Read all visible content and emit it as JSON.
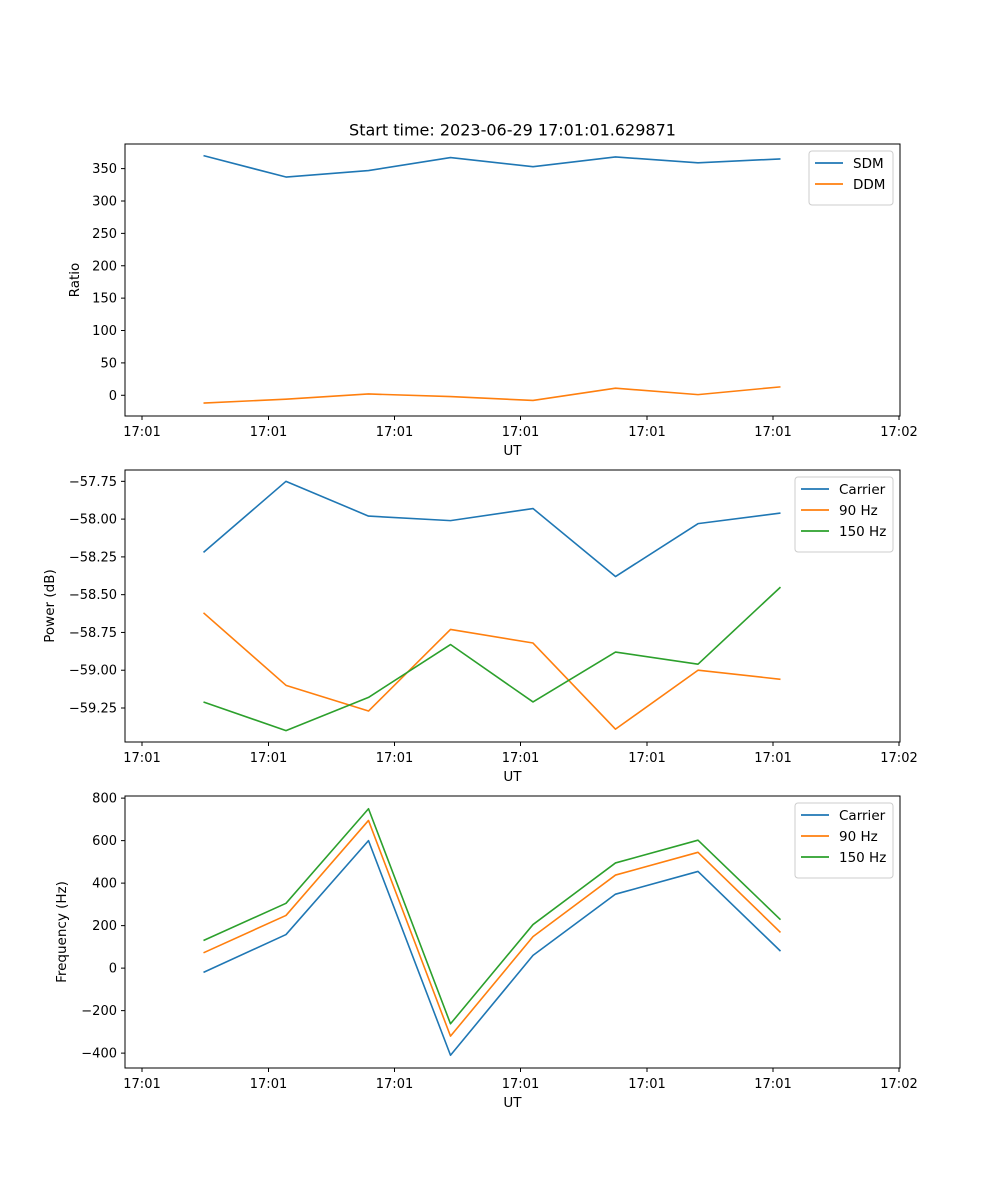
{
  "figure": {
    "title": "Start time: 2023-06-29 17:01:01.629871"
  },
  "colors": {
    "blue": "#1f77b4",
    "orange": "#ff7f0e",
    "green": "#2ca02c"
  },
  "chart_data": [
    {
      "type": "line",
      "title": "Start time: 2023-06-29 17:01:01.629871",
      "xlabel": "UT",
      "ylabel": "Ratio",
      "x_ticks": [
        "17:01",
        "17:01",
        "17:01",
        "17:01",
        "17:01",
        "17:01",
        "17:02"
      ],
      "y_ticks": [
        0,
        50,
        100,
        150,
        200,
        250,
        300,
        350
      ],
      "ylim": [
        -32,
        388
      ],
      "x_index": [
        0,
        1,
        2,
        3,
        4,
        5,
        6,
        7
      ],
      "legend_position": "top-right",
      "grid": false,
      "series": [
        {
          "name": "SDM",
          "color": "#1f77b4",
          "values": [
            370,
            337,
            347,
            367,
            353,
            368,
            359,
            365
          ]
        },
        {
          "name": "DDM",
          "color": "#ff7f0e",
          "values": [
            -12,
            -6,
            2,
            -2,
            -8,
            11,
            1,
            13
          ]
        }
      ]
    },
    {
      "type": "line",
      "xlabel": "UT",
      "ylabel": "Power (dB)",
      "x_ticks": [
        "17:01",
        "17:01",
        "17:01",
        "17:01",
        "17:01",
        "17:01",
        "17:02"
      ],
      "y_ticks": [
        -59.25,
        -59.0,
        -58.75,
        -58.5,
        -58.25,
        -58.0,
        -57.75
      ],
      "y_tick_labels": [
        "−59.25",
        "−59.00",
        "−58.75",
        "−58.50",
        "−58.25",
        "−58.00",
        "−57.75"
      ],
      "ylim": [
        -59.475,
        -57.675
      ],
      "x_index": [
        0,
        1,
        2,
        3,
        4,
        5,
        6,
        7
      ],
      "legend_position": "top-right",
      "grid": false,
      "series": [
        {
          "name": "Carrier",
          "color": "#1f77b4",
          "values": [
            -58.22,
            -57.75,
            -57.98,
            -58.01,
            -57.93,
            -58.38,
            -58.03,
            -57.96
          ]
        },
        {
          "name": "90 Hz",
          "color": "#ff7f0e",
          "values": [
            -58.62,
            -59.1,
            -59.27,
            -58.73,
            -58.82,
            -59.39,
            -59.0,
            -59.06
          ]
        },
        {
          "name": "150 Hz",
          "color": "#2ca02c",
          "values": [
            -59.21,
            -59.4,
            -59.18,
            -58.83,
            -59.21,
            -58.88,
            -58.96,
            -58.45
          ]
        }
      ]
    },
    {
      "type": "line",
      "xlabel": "UT",
      "ylabel": "Frequency (Hz)",
      "x_ticks": [
        "17:01",
        "17:01",
        "17:01",
        "17:01",
        "17:01",
        "17:01",
        "17:02"
      ],
      "y_ticks": [
        -400,
        -200,
        0,
        200,
        400,
        600,
        800
      ],
      "y_tick_labels": [
        "−400",
        "−200",
        "0",
        "200",
        "400",
        "600",
        "800"
      ],
      "ylim": [
        -470,
        810
      ],
      "x_index": [
        0,
        1,
        2,
        3,
        4,
        5,
        6,
        7
      ],
      "legend_position": "top-right",
      "grid": false,
      "series": [
        {
          "name": "Carrier",
          "color": "#1f77b4",
          "values": [
            -20,
            158,
            600,
            -410,
            60,
            348,
            455,
            80
          ]
        },
        {
          "name": "90 Hz",
          "color": "#ff7f0e",
          "values": [
            72,
            248,
            695,
            -320,
            148,
            438,
            545,
            168
          ]
        },
        {
          "name": "150 Hz",
          "color": "#2ca02c",
          "values": [
            130,
            305,
            750,
            -262,
            205,
            495,
            602,
            228
          ]
        }
      ]
    }
  ]
}
